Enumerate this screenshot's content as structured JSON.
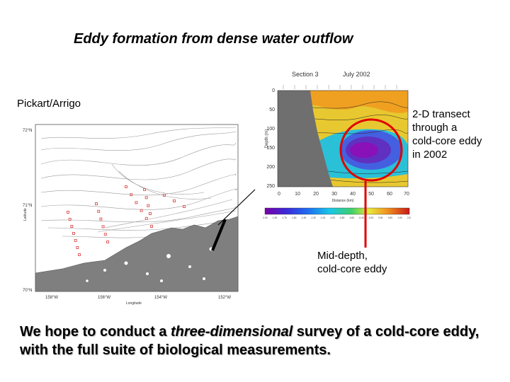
{
  "slide": {
    "title": "Eddy formation from dense water outflow",
    "credit": "Pickart/Arrigo",
    "transect_note": [
      "2-D transect",
      "through a",
      "cold-core eddy",
      "in 2002"
    ],
    "eddy_note": [
      "Mid-depth,",
      "cold-core eddy"
    ],
    "summary": {
      "before": "We hope to conduct a ",
      "emphasis": "three-dimensional",
      "after": " survey of a cold-core eddy, with the full suite of biological measurements."
    }
  },
  "section_plot": {
    "title_left": "Section 3",
    "title_right": "July 2002",
    "y_axis_label": "Depth (m)",
    "x_axis_label": "Distance (km)",
    "y_ticks": [
      "0",
      "50",
      "100",
      "150",
      "200",
      "250"
    ],
    "x_ticks": [
      "0",
      "10",
      "20",
      "30",
      "40",
      "50",
      "60",
      "70"
    ],
    "colorbar_ticks": [
      "-2.00",
      "-1.90",
      "-1.75",
      "-1.60",
      "-1.45",
      "-1.30",
      "-1.20",
      "-1.00",
      "-0.80",
      "-0.60",
      "-0.40",
      "-0.20",
      "0.00",
      "0.50",
      "1.00",
      "2.00"
    ],
    "colors": {
      "eddy_circle": "#e00000",
      "pointer_line": "#e00000"
    }
  },
  "map_plot": {
    "y_ticks": [
      "72°N",
      "71°N",
      "70°N"
    ],
    "x_ticks": [
      "158°W",
      "156°W",
      "154°W",
      "152°W"
    ],
    "x_axis_label": "Longitude",
    "y_axis_label": "Latitude",
    "colors": {
      "land": "#7f7f7f",
      "stations": "#e06060"
    }
  }
}
